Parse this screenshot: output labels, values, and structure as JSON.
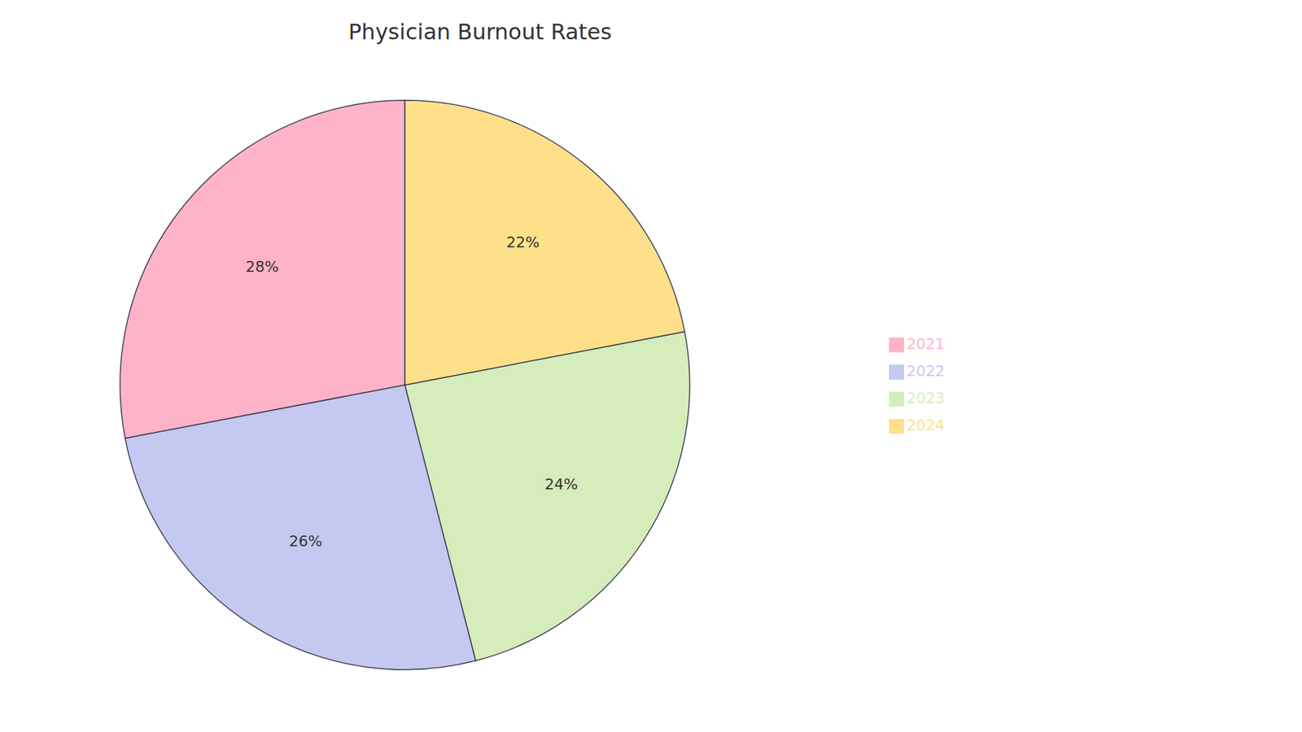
{
  "chart_data": {
    "type": "pie",
    "title": "Physician Burnout Rates",
    "categories": [
      "2021",
      "2022",
      "2023",
      "2024"
    ],
    "values": [
      28,
      26,
      24,
      22
    ],
    "value_labels": [
      "28%",
      "26%",
      "24%",
      "22%"
    ],
    "colors": [
      "#FFB3C8",
      "#C5C8F0",
      "#D4EDBA",
      "#FFE08A"
    ],
    "data_labels": true,
    "legend": "right"
  }
}
